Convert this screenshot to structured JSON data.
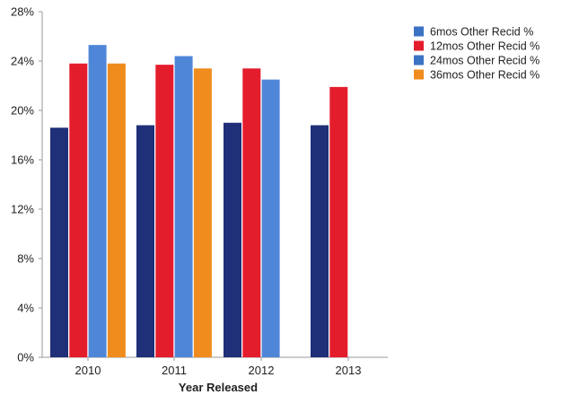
{
  "chart_data": {
    "type": "bar",
    "xlabel": "Year Released",
    "ylabel": "",
    "ylim": [
      0,
      28
    ],
    "yticks": [
      "0%",
      "4%",
      "8%",
      "12%",
      "16%",
      "20%",
      "24%",
      "28%"
    ],
    "ytick_values": [
      0,
      4,
      8,
      12,
      16,
      20,
      24,
      28
    ],
    "categories": [
      "2010",
      "2011",
      "2012",
      "2013"
    ],
    "grid": false,
    "legend_position": "top-right",
    "series": [
      {
        "name": "6mos Other Recid %",
        "color": "#1f2f78",
        "legend_color": "#3b72c4",
        "values": [
          18.6,
          18.8,
          19.0,
          18.8
        ]
      },
      {
        "name": "12mos Other Recid %",
        "color": "#e41d2d",
        "legend_color": "#e41d2d",
        "values": [
          23.8,
          23.7,
          23.4,
          21.9
        ]
      },
      {
        "name": "24mos Other Recid %",
        "color": "#4f86d8",
        "legend_color": "#3b72c4",
        "values": [
          25.3,
          24.4,
          22.5,
          null
        ]
      },
      {
        "name": "36mos Other Recid %",
        "color": "#f08c1e",
        "legend_color": "#f08c1e",
        "values": [
          23.8,
          23.4,
          null,
          null
        ]
      }
    ]
  }
}
